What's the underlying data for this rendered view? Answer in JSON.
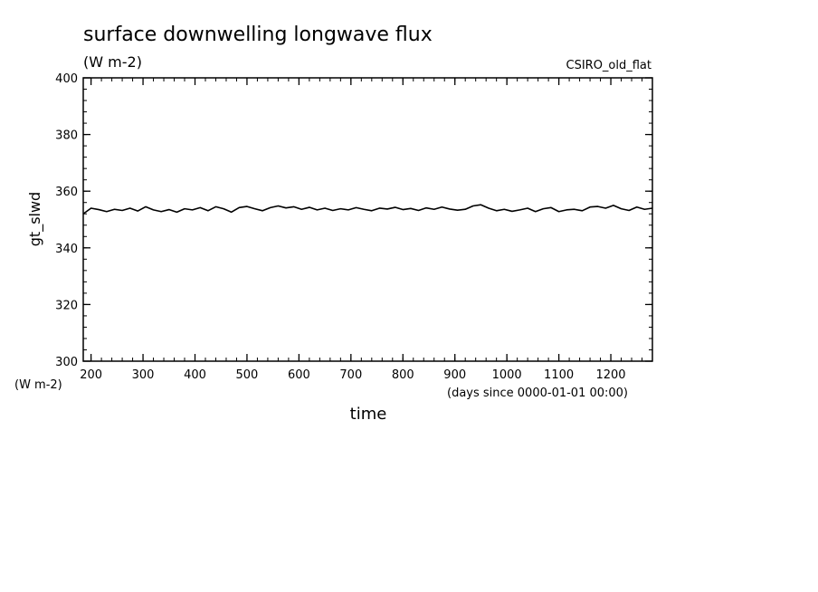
{
  "chart_data": {
    "type": "line",
    "title": "surface downwelling longwave flux",
    "subtitle": "(W m-2)",
    "source_label": "CSIRO_old_flat",
    "ylabel": "gt_slwd",
    "ylabel_units": "(W m-2)",
    "xlabel": "time",
    "x_units_note": "(days since 0000-01-01 00:00)",
    "xlim": [
      185,
      1280
    ],
    "ylim": [
      300,
      400
    ],
    "x_ticks": [
      200,
      300,
      400,
      500,
      600,
      700,
      800,
      900,
      1000,
      1100,
      1200
    ],
    "x_tick_labels": [
      "200",
      "300",
      "400",
      "500",
      "600",
      "700",
      "800",
      "900",
      "1000",
      "1100",
      "1200"
    ],
    "y_ticks": [
      300,
      320,
      340,
      360,
      380,
      400
    ],
    "y_tick_labels": [
      "300",
      "320",
      "340",
      "360",
      "380",
      "400"
    ],
    "grid": false,
    "line_color": "#000000",
    "series": [
      {
        "x": [
          185,
          200,
          215,
          230,
          245,
          260,
          275,
          290,
          305,
          320,
          335,
          350,
          365,
          380,
          395,
          410,
          425,
          440,
          455,
          470,
          485,
          500,
          515,
          530,
          545,
          560,
          575,
          590,
          605,
          620,
          635,
          650,
          665,
          680,
          695,
          710,
          725,
          740,
          755,
          770,
          785,
          800,
          815,
          830,
          845,
          860,
          875,
          890,
          905,
          920,
          935,
          950,
          965,
          980,
          995,
          1010,
          1025,
          1040,
          1055,
          1070,
          1085,
          1100,
          1115,
          1130,
          1145,
          1160,
          1175,
          1190,
          1205,
          1220,
          1235,
          1250,
          1265,
          1280
        ],
        "values": [
          352,
          354,
          353.5,
          352.8,
          353.6,
          353.2,
          354,
          353,
          354.5,
          353.4,
          352.8,
          353.5,
          352.6,
          353.8,
          353.4,
          354.2,
          353.1,
          354.5,
          353.8,
          352.6,
          354.2,
          354.6,
          353.8,
          353.1,
          354.2,
          354.8,
          354.1,
          354.5,
          353.6,
          354.3,
          353.4,
          354,
          353.2,
          353.8,
          353.4,
          354.2,
          353.6,
          353.1,
          354,
          353.7,
          354.3,
          353.5,
          353.9,
          353.2,
          354.1,
          353.6,
          354.4,
          353.7,
          353.3,
          353.6,
          354.8,
          355.2,
          354,
          353.1,
          353.6,
          352.9,
          353.4,
          354,
          352.8,
          353.8,
          354.2,
          352.8,
          353.4,
          353.6,
          353.1,
          354.4,
          354.6,
          354,
          355,
          353.8,
          353.2,
          354.4,
          353.6,
          354
        ]
      }
    ]
  }
}
